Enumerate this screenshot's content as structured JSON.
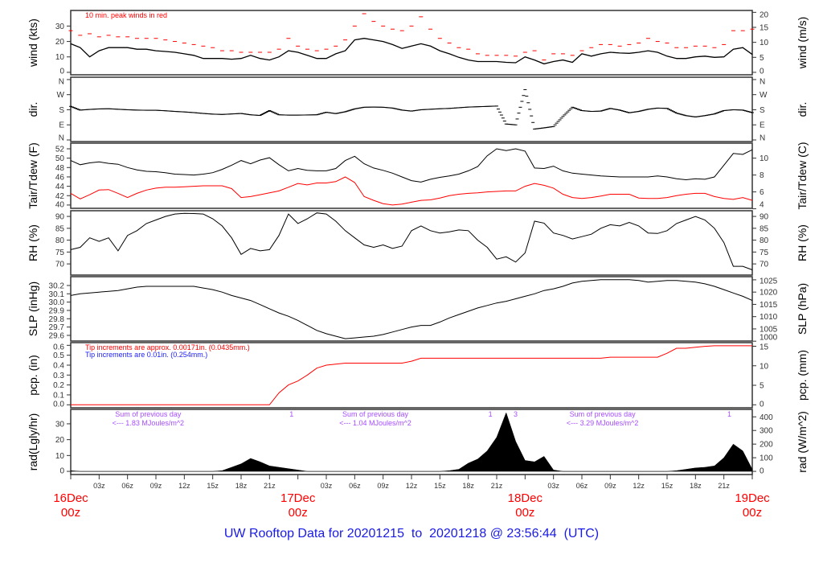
{
  "chart_data": {
    "type": "line",
    "title": "UW Rooftop Data for 20201215  to  20201218 @ 23:56:44  (UTC)",
    "time": {
      "start": "2020-12-16T00:00Z",
      "end": "2020-12-19T00:00Z",
      "interval_minutes": 60
    },
    "x_ticks": [
      [
        "16Dec",
        "00z"
      ],
      "03z",
      "06z",
      "09z",
      "12z",
      "15z",
      "18z",
      "21z",
      [
        "17Dec",
        "00z"
      ],
      "03z",
      "06z",
      "09z",
      "12z",
      "15z",
      "18z",
      "21z",
      [
        "18Dec",
        "00z"
      ],
      "03z",
      "06z",
      "09z",
      "12z",
      "15z",
      "18z",
      "21z",
      [
        "19Dec",
        "00z"
      ]
    ],
    "colors": {
      "peak": "#ff0000",
      "dewpoint": "#ff0000",
      "precip": "#ff0000",
      "precip_note_blue": "#2020ff",
      "radiation_note": "#a64dff",
      "title": "#1a1ae6",
      "day_label": "#ff0000"
    },
    "panels": [
      {
        "id": "wind",
        "left_label": "wind (kts)",
        "right_label": "wind (m/s)",
        "ylim": [
          -1.6,
          40.1
        ],
        "left_ticks": [
          "0",
          "10",
          "20",
          "30"
        ],
        "right_ticks": [
          "0",
          "5",
          "10",
          "15",
          "20"
        ],
        "annotations": [
          {
            "text": "10 min. peak winds in red",
            "color": "#ff0000"
          }
        ],
        "series": {
          "wind_kts": [
            18.5,
            16,
            10,
            14,
            16,
            16,
            16,
            15,
            15,
            14,
            13.5,
            13,
            12,
            11,
            9,
            9,
            9,
            8.5,
            9,
            11,
            9,
            8,
            10,
            14,
            13,
            11,
            9,
            9,
            12,
            14,
            21,
            22,
            21,
            20,
            18,
            15.5,
            17,
            18.5,
            17,
            14,
            12,
            9.7,
            8,
            7,
            7,
            7,
            6.5,
            6.2,
            10,
            8,
            5.5,
            7,
            8,
            6.5,
            12,
            10.5,
            12,
            13,
            12.5,
            12.3,
            13,
            14,
            13,
            10.5,
            9,
            9,
            10,
            10.5,
            9.7,
            10,
            15,
            16,
            11.6
          ],
          "peak_kts": [
            27,
            24,
            25,
            23,
            24,
            23,
            23,
            22,
            22,
            22,
            21,
            20,
            19,
            18,
            17,
            16,
            14,
            14,
            13,
            13,
            13,
            13,
            15,
            22,
            17,
            15,
            14,
            15,
            17,
            21,
            30,
            38,
            33,
            30,
            28,
            27,
            30,
            36,
            28,
            22,
            19,
            16,
            15,
            12,
            11,
            11,
            11,
            10.5,
            13,
            14,
            8,
            12,
            12,
            11,
            14,
            16,
            18,
            18,
            17,
            18,
            19,
            22,
            20,
            19,
            16,
            16,
            17,
            17,
            16,
            18,
            27,
            27,
            28
          ]
        }
      },
      {
        "id": "dir",
        "left_label": "dir.",
        "right_label": "dir.",
        "ylim": [
          -9.6,
          374
        ],
        "left_ticks": [
          "N",
          "E",
          "S",
          "W",
          "N"
        ],
        "tick_values": [
          0,
          90,
          180,
          270,
          360
        ],
        "right_ticks": [
          "N",
          "E",
          "S",
          "W",
          "N"
        ],
        "series": {
          "dir_deg": [
            200,
            178,
            182,
            185,
            186,
            183,
            180,
            178,
            177,
            177,
            174,
            170,
            167,
            163,
            158,
            154,
            152,
            155,
            158,
            150,
            146,
            175,
            150,
            148,
            148,
            149,
            150,
            165,
            157,
            168,
            185,
            195,
            196,
            195,
            190,
            178,
            172,
            180,
            183,
            186,
            188,
            192,
            196,
            198,
            200,
            202,
            95,
            90,
            300,
            65,
            72,
            80,
            140,
            195,
            175,
            170,
            172,
            188,
            178,
            162,
            170,
            183,
            190,
            188,
            160,
            145,
            137,
            145,
            155,
            175,
            180,
            178,
            163
          ]
        }
      },
      {
        "id": "temp",
        "left_label": "Tair/Tdew (F)",
        "right_label": "Tair/Tdew (C)",
        "ylim": [
          39.3,
          53.2
        ],
        "left_ticks": [
          "40",
          "42",
          "44",
          "46",
          "48",
          "50",
          "52"
        ],
        "right_ticks": [
          "4",
          "6",
          "8",
          "10"
        ],
        "series": {
          "tair_f": [
            49.5,
            48.6,
            49.0,
            49.2,
            48.9,
            48.7,
            48.0,
            47.5,
            47.2,
            47.1,
            46.9,
            46.6,
            46.5,
            46.4,
            46.6,
            46.9,
            47.6,
            48.5,
            49.5,
            48.8,
            49.6,
            50.1,
            48.6,
            47.3,
            47.8,
            47.4,
            47.3,
            47.3,
            47.8,
            49.5,
            50.4,
            48.8,
            47.9,
            47.4,
            46.8,
            46.0,
            45.2,
            44.9,
            45.5,
            45.9,
            46.2,
            46.6,
            47.3,
            48.2,
            50.5,
            52.0,
            51.6,
            52.0,
            51.5,
            47.9,
            47.8,
            48.3,
            47.3,
            46.8,
            46.6,
            46.4,
            46.2,
            46.1,
            46.0,
            46.0,
            46.0,
            46.0,
            46.2,
            46.0,
            45.6,
            45.4,
            45.6,
            45.5,
            46.0,
            48.5,
            51.0,
            50.8,
            51.8
          ],
          "tdew_f": [
            42.5,
            41.3,
            42.2,
            43.2,
            43.3,
            42.5,
            41.6,
            42.5,
            43.2,
            43.6,
            43.8,
            43.8,
            43.9,
            44.0,
            44.1,
            44.1,
            44.1,
            43.5,
            41.6,
            41.8,
            42.2,
            42.6,
            43.0,
            43.8,
            44.6,
            44.3,
            44.7,
            44.7,
            45.0,
            46.0,
            44.8,
            41.8,
            41.0,
            40.3,
            40.0,
            40.2,
            40.6,
            41.0,
            41.1,
            41.5,
            42.0,
            42.3,
            42.5,
            42.6,
            42.8,
            42.9,
            43.0,
            43.0,
            44.0,
            44.6,
            44.2,
            43.6,
            42.3,
            41.6,
            41.4,
            41.6,
            41.9,
            42.3,
            42.3,
            42.3,
            41.5,
            41.4,
            41.4,
            41.6,
            42.0,
            42.3,
            42.5,
            42.5,
            41.8,
            41.4,
            41.2,
            41.6,
            41.0
          ]
        }
      },
      {
        "id": "rh",
        "left_label": "RH (%)",
        "right_label": "RH (%)",
        "ylim": [
          65.3,
          92.4
        ],
        "left_ticks": [
          "70",
          "75",
          "80",
          "85",
          "90"
        ],
        "right_ticks": [
          "70",
          "75",
          "80",
          "85",
          "90"
        ],
        "series": {
          "rh_pct": [
            76,
            77,
            81,
            79.5,
            81,
            75.5,
            82,
            84,
            87,
            88.5,
            90,
            91,
            91.3,
            91.2,
            91,
            89,
            86,
            81,
            74,
            76.5,
            75.5,
            76,
            82,
            91,
            87,
            89,
            91.5,
            91,
            88,
            84,
            81,
            78,
            77,
            78,
            76.5,
            77.5,
            84,
            86,
            84,
            83,
            83.5,
            84.3,
            84,
            80,
            77,
            72,
            73,
            70.8,
            74.6,
            88,
            87.2,
            83,
            82,
            80.5,
            81.5,
            82.5,
            85,
            86.5,
            86,
            87.5,
            86,
            83,
            82.8,
            84,
            87,
            88.5,
            90,
            88.5,
            85,
            79,
            69,
            69,
            67.5
          ]
        }
      },
      {
        "id": "slp",
        "left_label": "SLP (inHg)",
        "right_label": "SLP (hPa)",
        "ylim": [
          29.532,
          30.306
        ],
        "left_ticks": [
          "29.6",
          "29.7",
          "29.8",
          "29.9",
          "30.0",
          "30.1",
          "30.2"
        ],
        "right_ticks": [
          "1000",
          "1005",
          "1010",
          "1015",
          "1020",
          "1025"
        ],
        "series": {
          "slp_inhg": [
            30.08,
            30.1,
            30.11,
            30.12,
            30.13,
            30.14,
            30.16,
            30.18,
            30.19,
            30.19,
            30.19,
            30.19,
            30.19,
            30.19,
            30.17,
            30.15,
            30.12,
            30.08,
            30.05,
            30.02,
            29.97,
            29.92,
            29.87,
            29.83,
            29.78,
            29.72,
            29.66,
            29.62,
            29.59,
            29.56,
            29.57,
            29.58,
            29.59,
            29.61,
            29.64,
            29.67,
            29.7,
            29.72,
            29.72,
            29.76,
            29.81,
            29.85,
            29.89,
            29.93,
            29.96,
            29.99,
            30.01,
            30.04,
            30.07,
            30.1,
            30.14,
            30.16,
            30.19,
            30.23,
            30.25,
            30.26,
            30.27,
            30.27,
            30.27,
            30.27,
            30.26,
            30.24,
            30.25,
            30.26,
            30.26,
            30.25,
            30.24,
            30.22,
            30.19,
            30.15,
            30.11,
            30.07,
            30.02
          ]
        }
      },
      {
        "id": "pcp",
        "left_label": "pcp. (in)",
        "right_label": "pcp. (mm)",
        "ylim": [
          -0.03,
          0.627
        ],
        "left_ticks": [
          "0.0",
          "0.1",
          "0.2",
          "0.3",
          "0.4",
          "0.5",
          "0.6"
        ],
        "right_ticks": [
          "0",
          "5",
          "10",
          "15"
        ],
        "annotations": [
          {
            "text": "Tip increments are approx. 0.00171in. (0.0435mm.)",
            "color": "#ff0000"
          },
          {
            "text": "Tip increments are 0.01in. (0.254mm.)",
            "color": "#2020ff"
          }
        ],
        "series": {
          "pcp_in": [
            0,
            0,
            0,
            0,
            0,
            0,
            0,
            0,
            0,
            0,
            0,
            0,
            0,
            0,
            0,
            0,
            0,
            0,
            0,
            0,
            0,
            0,
            0.12,
            0.2,
            0.24,
            0.3,
            0.37,
            0.4,
            0.41,
            0.42,
            0.42,
            0.42,
            0.42,
            0.42,
            0.42,
            0.42,
            0.44,
            0.47,
            0.47,
            0.47,
            0.47,
            0.47,
            0.47,
            0.47,
            0.47,
            0.47,
            0.47,
            0.47,
            0.47,
            0.47,
            0.47,
            0.47,
            0.47,
            0.47,
            0.47,
            0.47,
            0.47,
            0.48,
            0.48,
            0.48,
            0.48,
            0.48,
            0.48,
            0.52,
            0.57,
            0.57,
            0.58,
            0.59,
            0.595,
            0.595,
            0.595,
            0.595,
            0.595
          ]
        }
      },
      {
        "id": "rad",
        "left_label": "rad(Lgly/hr)",
        "right_label": "rad (W/m^2)",
        "ylim": [
          -2.0,
          39.1
        ],
        "left_ticks": [
          "0",
          "10",
          "20",
          "30"
        ],
        "right_ticks": [
          "0",
          "100",
          "200",
          "300",
          "400"
        ],
        "daily_sums": [
          {
            "line1": "Sum of previous day",
            "line2": "<--- 1.83 MJoules/m^2"
          },
          {
            "line1": "Sum of previous day",
            "line2": "<--- 1.04 MJoules/m^2"
          },
          {
            "line1": "Sum of previous day",
            "line2": "<--- 3.29 MJoules/m^2"
          }
        ],
        "flags": [
          {
            "time": "2020-12-16T23:20Z",
            "text": "1"
          },
          {
            "time": "2020-12-17T20:20Z",
            "text": "1"
          },
          {
            "time": "2020-12-17T23:00Z",
            "text": "3"
          },
          {
            "time": "2020-12-18T21:35Z",
            "text": "1"
          }
        ],
        "series": {
          "rad_w_m2": [
            5,
            0,
            0,
            0,
            0,
            0,
            0,
            0,
            0,
            0,
            0,
            0,
            0,
            0,
            0,
            0,
            5,
            30,
            55,
            95,
            70,
            40,
            30,
            20,
            10,
            0,
            0,
            0,
            0,
            0,
            0,
            0,
            0,
            0,
            0,
            0,
            0,
            0,
            0,
            0,
            5,
            15,
            60,
            90,
            150,
            250,
            430,
            220,
            80,
            70,
            110,
            10,
            0,
            0,
            0,
            0,
            0,
            0,
            0,
            0,
            0,
            0,
            0,
            0,
            5,
            15,
            25,
            30,
            40,
            100,
            200,
            150,
            15
          ]
        }
      }
    ]
  }
}
